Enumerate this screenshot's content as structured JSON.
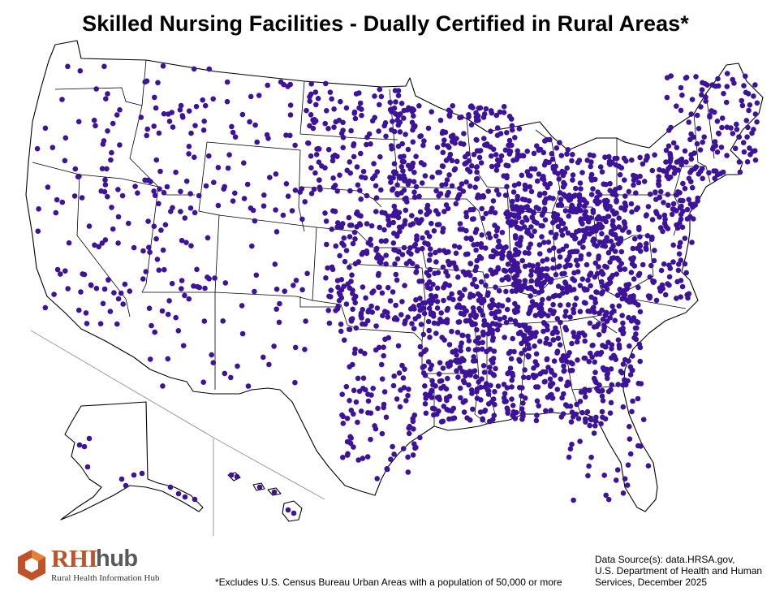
{
  "map": {
    "title": "Skilled Nursing Facilities - Dually Certified in Rural Areas*",
    "marker_color": "#3d139a",
    "boundary_color": "#000000",
    "background_color": "#ffffff"
  },
  "footnote": "*Excludes U.S. Census Bureau Urban Areas with a population of 50,000 or more",
  "source": {
    "line1": "Data Source(s): data.HRSA.gov,",
    "line2": "U.S. Department of Health and Human",
    "line3": "Services, December 2025"
  },
  "logo": {
    "name_part1": "RHI",
    "name_part2": "hub",
    "subtitle": "Rural Health Information Hub",
    "colors": {
      "orange": "#c0522a",
      "gray": "#58595b"
    }
  }
}
